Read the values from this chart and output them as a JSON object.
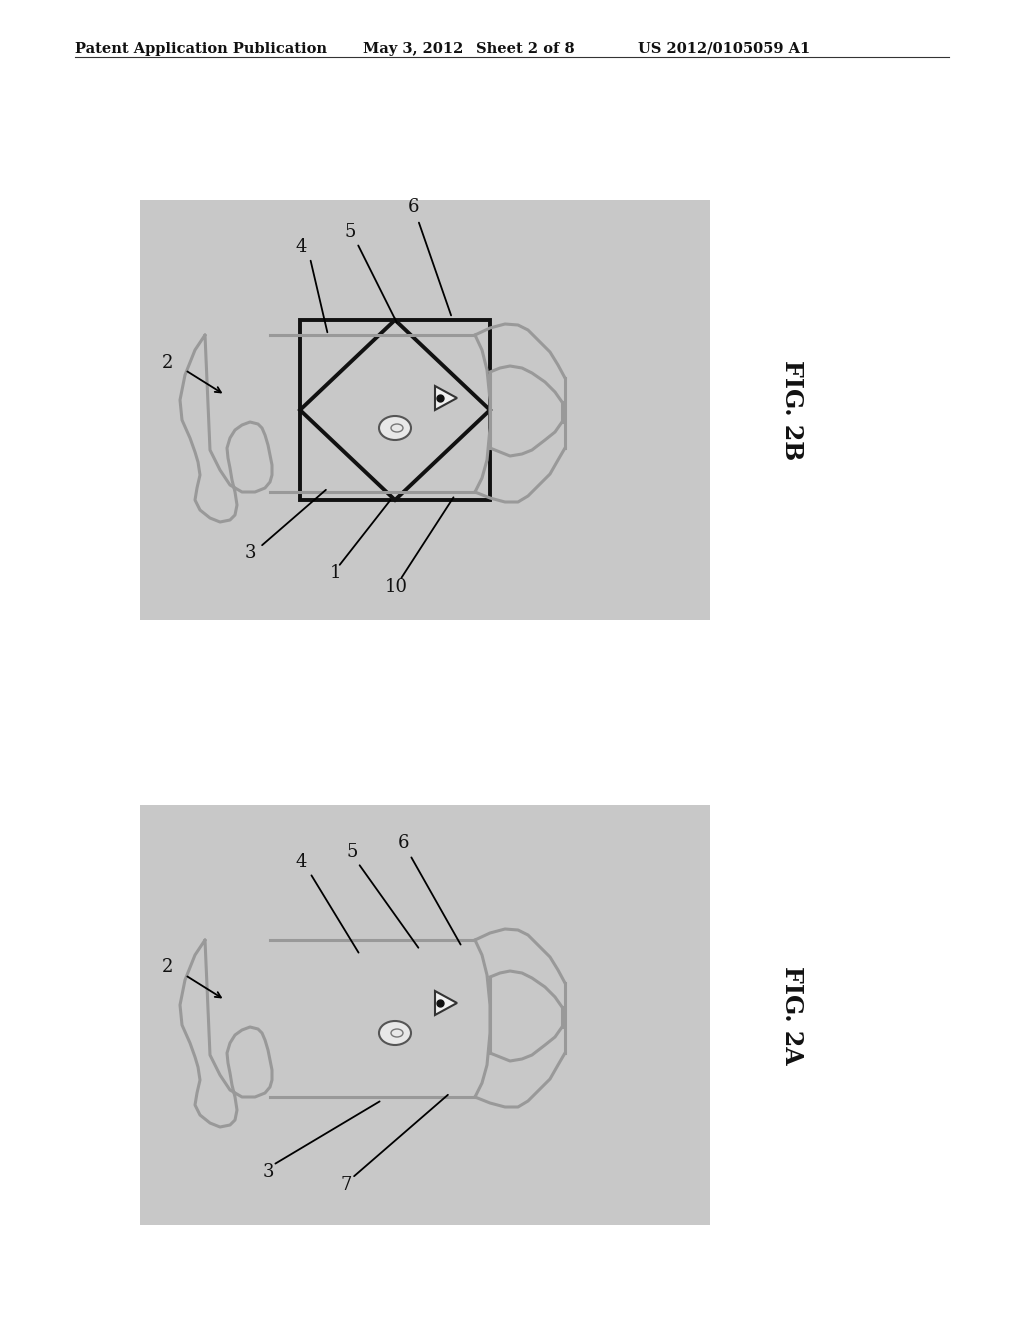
{
  "background_color": "#ffffff",
  "diagram_bg": "#d0d0d0",
  "header_text": "Patent Application Publication",
  "header_date": "May 3, 2012",
  "header_sheet": "Sheet 2 of 8",
  "header_patent": "US 2012/0105059 A1",
  "fig2b_label": "FIG. 2B",
  "fig2a_label": "FIG. 2A",
  "gray_body": "#999999",
  "black": "#111111",
  "white": "#ffffff",
  "dark_gray": "#444444"
}
